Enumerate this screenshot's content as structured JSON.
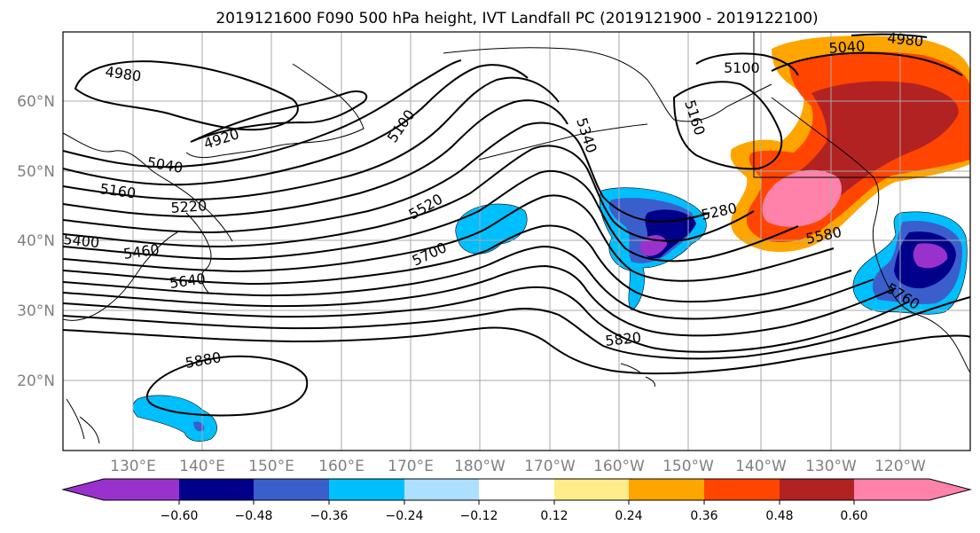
{
  "title": "2019121600 F090 500 hPa height, IVT Landfall PC (2019121900 - 2019122100)",
  "lat_labels": [
    "60°N",
    "50°N",
    "40°N",
    "30°N",
    "20°N"
  ],
  "lon_labels": [
    "130°E",
    "140°E",
    "150°E",
    "160°E",
    "170°E",
    "180°W",
    "170°W",
    "160°W",
    "150°W",
    "140°W",
    "130°W",
    "120°W"
  ],
  "contour_labels": [
    "4980",
    "4920",
    "5040",
    "5160",
    "5220",
    "5400",
    "5460",
    "5640",
    "5100",
    "5520",
    "5700",
    "5340",
    "5280",
    "5160",
    "5100",
    "5040",
    "4980",
    "5580",
    "5760",
    "5820",
    "5880"
  ],
  "colorbar": {
    "ticks": [
      "−0.60",
      "−0.48",
      "−0.36",
      "−0.24",
      "−0.12",
      "0.12",
      "0.24",
      "0.36",
      "0.48",
      "0.60"
    ],
    "colors": [
      "#9932CC",
      "#00008B",
      "#3A5FCD",
      "#00BFFF",
      "#ADDFFF",
      "#FFFFFF",
      "#FFEC8B",
      "#FFA500",
      "#FF4500",
      "#B22222",
      "#FF82AB"
    ]
  }
}
